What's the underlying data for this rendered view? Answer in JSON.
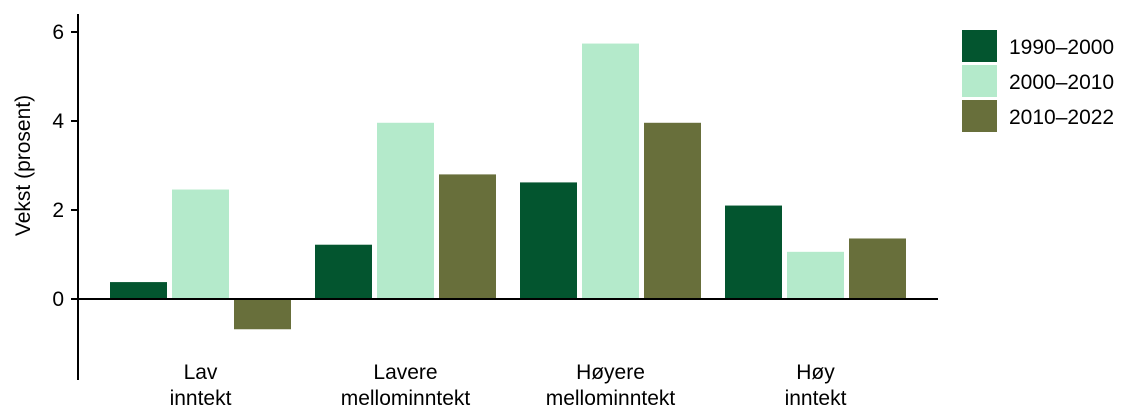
{
  "chart_data": {
    "type": "bar",
    "title": "",
    "xlabel": "",
    "ylabel": "Vekst (prosent)",
    "ylim": [
      -2,
      6.5
    ],
    "yticks": [
      0,
      2,
      4,
      6
    ],
    "grid": false,
    "legend_position": "top-right",
    "categories": [
      [
        "Lav",
        "inntekt"
      ],
      [
        "Lavere",
        "mellominntekt"
      ],
      [
        "Høyere",
        "mellominntekt"
      ],
      [
        "Høy",
        "inntekt"
      ]
    ],
    "series": [
      {
        "name": "1990–2000",
        "color": "#03552f",
        "values": [
          0.38,
          1.22,
          2.62,
          2.1
        ]
      },
      {
        "name": "2000–2010",
        "color": "#b4eacb",
        "values": [
          2.46,
          3.96,
          5.74,
          1.06
        ]
      },
      {
        "name": "2010–2022",
        "color": "#686f3b",
        "values": [
          -0.68,
          2.8,
          3.96,
          1.36
        ]
      }
    ]
  }
}
